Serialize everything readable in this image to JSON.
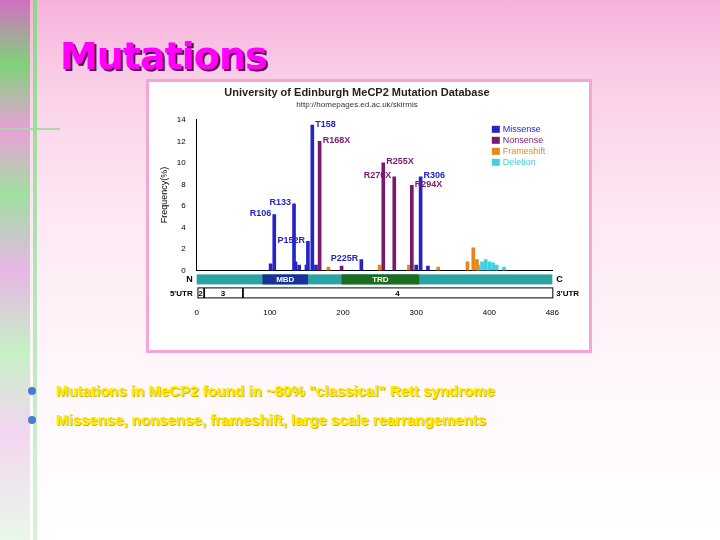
{
  "slide": {
    "title": "Mutations",
    "bullets": [
      "Mutations in MeCP2 found in ~80% \"classical\" Rett syndrome",
      "Missense, nonsense, frameshift, large scale rearrangements"
    ]
  },
  "chart_data": {
    "type": "bar",
    "title": "University of Edinburgh MeCP2 Mutation Database",
    "subtitle": "http://homepages.ed.ac.uk/skirmis",
    "y_label": "Frequency(%)",
    "xlim": [
      0,
      486
    ],
    "xticks": [
      0,
      100,
      200,
      300,
      400,
      486
    ],
    "ylim": [
      0,
      14
    ],
    "yticks": [
      0,
      2,
      4,
      6,
      8,
      10,
      12,
      14
    ],
    "grid": false,
    "legend": "upper right",
    "series": [
      {
        "name": "Missense",
        "color": "#2424c8",
        "x": [
          101,
          106,
          133,
          135,
          140,
          150,
          152,
          158,
          163,
          225,
          300,
          306,
          316
        ],
        "values": [
          0.6,
          5.2,
          6.2,
          0.8,
          0.5,
          0.5,
          2.7,
          13.5,
          0.5,
          1.0,
          0.5,
          8.7,
          0.4
        ],
        "labels": [
          null,
          "R106",
          "R133",
          null,
          null,
          null,
          "P152R",
          "T158",
          null,
          "P225R",
          null,
          "R306",
          null
        ]
      },
      {
        "name": "Nonsense",
        "color": "#7a1a6e",
        "x": [
          168,
          198,
          255,
          270,
          294
        ],
        "values": [
          12.0,
          0.4,
          10.0,
          8.7,
          7.9
        ],
        "labels": [
          "R168X",
          null,
          "R255X",
          "R270X",
          "R294X"
        ]
      },
      {
        "name": "Frameshift",
        "color": "#e8861a",
        "x": [
          180,
          250,
          290,
          330,
          370,
          378,
          383
        ],
        "values": [
          0.3,
          0.5,
          0.5,
          0.3,
          0.8,
          2.1,
          1.0
        ]
      },
      {
        "name": "Deletion",
        "color": "#40d0e0",
        "x": [
          385,
          390,
          395,
          400,
          405,
          410,
          420
        ],
        "values": [
          0.5,
          0.8,
          1.0,
          0.8,
          0.7,
          0.5,
          0.3
        ]
      }
    ],
    "protein": {
      "n_label": "N",
      "c_label": "C",
      "utr5": "5'UTR",
      "utr3": "3'UTR",
      "domains": [
        {
          "label": "MBD",
          "start": 90,
          "end": 152,
          "color": "#1a2f9a"
        },
        {
          "label": "TRD",
          "start": 198,
          "end": 304,
          "color": "#1d6b1d"
        }
      ],
      "exons": [
        {
          "label": "2",
          "start": 1,
          "end": 9
        },
        {
          "label": "3",
          "start": 10,
          "end": 62
        },
        {
          "label": "4",
          "start": 63,
          "end": 486
        }
      ]
    }
  }
}
